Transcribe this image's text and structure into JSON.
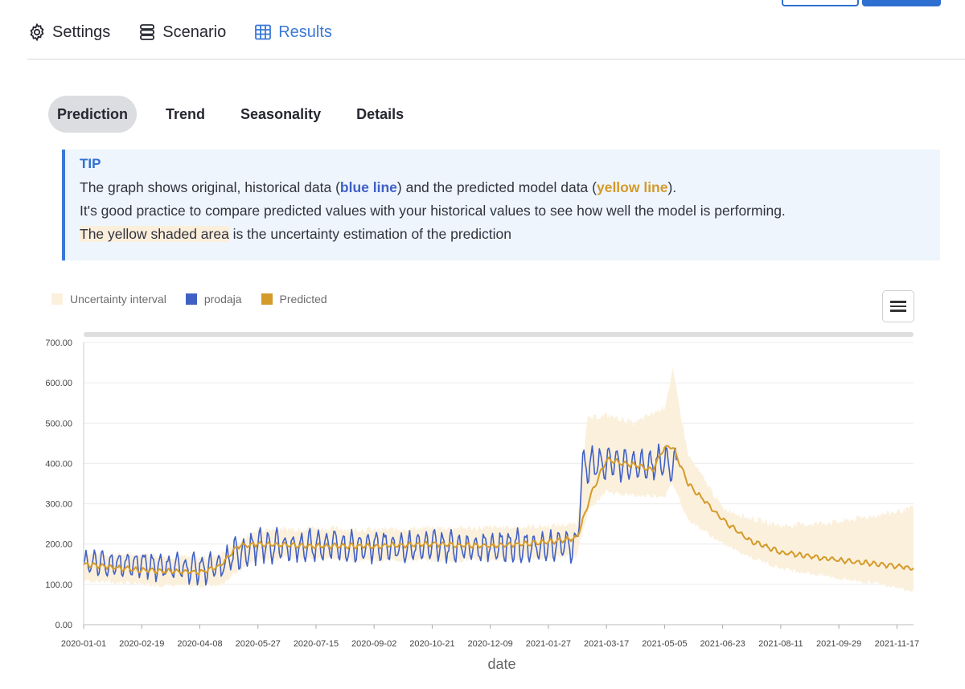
{
  "nav": {
    "items": [
      {
        "label": "Settings",
        "icon": "gear-icon",
        "active": false
      },
      {
        "label": "Scenario",
        "icon": "stack-icon",
        "active": false
      },
      {
        "label": "Results",
        "icon": "table-icon",
        "active": true
      }
    ]
  },
  "subtabs": {
    "items": [
      {
        "label": "Prediction",
        "active": true
      },
      {
        "label": "Trend",
        "active": false
      },
      {
        "label": "Seasonality",
        "active": false
      },
      {
        "label": "Details",
        "active": false
      }
    ]
  },
  "tip": {
    "title": "TIP",
    "line1_a": "The graph shows original, historical data (",
    "line1_blue": "blue line",
    "line1_b": ") and the predicted model data (",
    "line1_gold": "yellow line",
    "line1_c": ").",
    "line2": "It's good practice to compare predicted values with your historical values to see how well the model is performing.",
    "line3_shaded": "The yellow shaded area",
    "line3_rest": " is the uncertainty estimation of the prediction"
  },
  "colors": {
    "accent": "#3b78d8",
    "historical": "#4060c4",
    "predicted": "#d49a2a",
    "uncertainty": "#fbf0dc"
  },
  "chart_data": {
    "type": "line",
    "xlabel": "date",
    "ylabel": "",
    "ylim": [
      0,
      700
    ],
    "yticks": [
      "0.00",
      "100.00",
      "200.00",
      "300.00",
      "400.00",
      "500.00",
      "600.00",
      "700.00"
    ],
    "xticks": [
      "2020-01-01",
      "2020-02-19",
      "2020-04-08",
      "2020-05-27",
      "2020-07-15",
      "2020-09-02",
      "2020-10-21",
      "2020-12-09",
      "2021-01-27",
      "2021-03-17",
      "2021-05-05",
      "2021-06-23",
      "2021-08-11",
      "2021-09-29",
      "2021-11-17"
    ],
    "x_range": [
      "2020-01-01",
      "2021-12-01"
    ],
    "grid": true,
    "legend_position": "top-left",
    "series": [
      {
        "name": "Uncertainty interval",
        "kind": "band",
        "x": [
          "2020-01-01",
          "2020-02-19",
          "2020-04-08",
          "2020-04-25",
          "2020-05-27",
          "2020-07-15",
          "2020-09-02",
          "2020-10-21",
          "2020-12-09",
          "2021-01-27",
          "2021-02-20",
          "2021-03-01",
          "2021-03-17",
          "2021-04-10",
          "2021-05-05",
          "2021-05-12",
          "2021-05-25",
          "2021-06-23",
          "2021-07-15",
          "2021-08-11",
          "2021-09-29",
          "2021-11-17",
          "2021-12-01"
        ],
        "lower": [
          110,
          100,
          95,
          100,
          165,
          165,
          160,
          160,
          160,
          165,
          170,
          280,
          330,
          320,
          320,
          350,
          260,
          200,
          170,
          140,
          115,
          95,
          80
        ],
        "upper": [
          175,
          175,
          165,
          175,
          235,
          240,
          235,
          240,
          240,
          245,
          250,
          510,
          520,
          500,
          540,
          630,
          420,
          290,
          265,
          245,
          255,
          280,
          290
        ]
      },
      {
        "name": "prodaja",
        "kind": "line",
        "x": [
          "2020-01-01",
          "2020-02-19",
          "2020-04-08",
          "2020-04-25",
          "2020-05-05",
          "2020-05-27",
          "2020-07-15",
          "2020-09-02",
          "2020-10-21",
          "2020-12-09",
          "2021-01-27",
          "2021-02-20",
          "2021-02-25",
          "2021-03-17",
          "2021-04-10",
          "2021-05-05",
          "2021-05-15"
        ],
        "values": [
          150,
          150,
          140,
          140,
          170,
          195,
          195,
          195,
          195,
          195,
          195,
          200,
          395,
          400,
          395,
          400,
          400
        ]
      },
      {
        "name": "Predicted",
        "kind": "line",
        "x": [
          "2020-01-01",
          "2020-02-19",
          "2020-04-08",
          "2020-04-25",
          "2020-05-10",
          "2020-05-27",
          "2020-07-15",
          "2020-09-02",
          "2020-10-21",
          "2020-12-09",
          "2021-01-27",
          "2021-02-20",
          "2021-03-05",
          "2021-03-17",
          "2021-04-10",
          "2021-04-25",
          "2021-05-05",
          "2021-05-12",
          "2021-05-25",
          "2021-06-23",
          "2021-07-15",
          "2021-08-11",
          "2021-09-29",
          "2021-11-17",
          "2021-12-01"
        ],
        "values": [
          150,
          135,
          130,
          145,
          195,
          200,
          195,
          195,
          200,
          195,
          205,
          215,
          330,
          410,
          395,
          385,
          440,
          440,
          350,
          260,
          210,
          180,
          160,
          145,
          140
        ]
      }
    ]
  }
}
